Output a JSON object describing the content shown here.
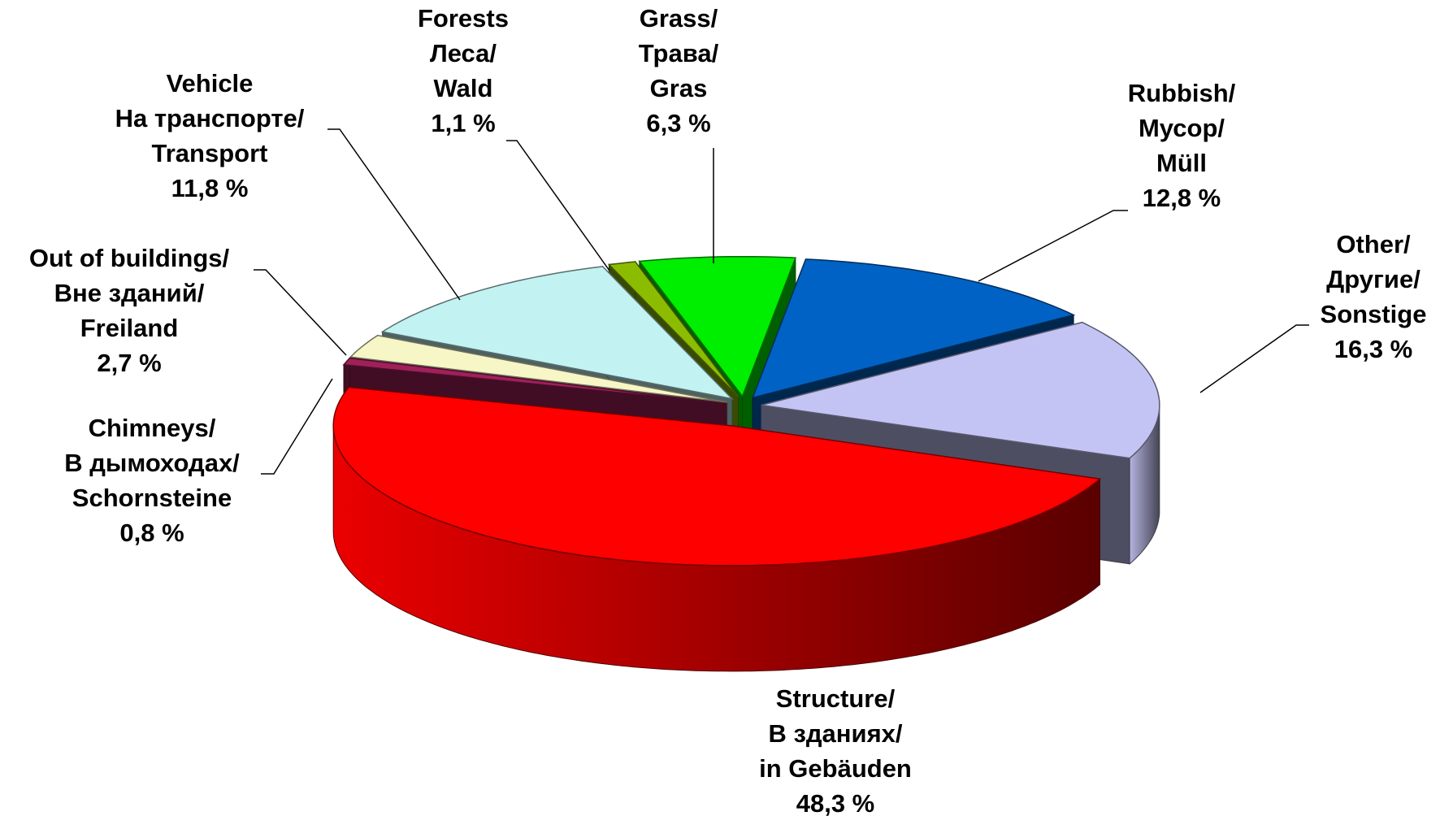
{
  "chart_data": {
    "type": "pie3d",
    "categories": [
      [
        "Grass/",
        "Трава/",
        "Gras"
      ],
      [
        "Rubbish/",
        "Мусор/",
        "Müll"
      ],
      [
        "Other/",
        "Другие/",
        "Sonstige"
      ],
      [
        "Structure/",
        "В зданиях/",
        "in Gebäuden"
      ],
      [
        "Chimneys/",
        "В дымоходах/",
        "Schornsteine"
      ],
      [
        "Out of buildings/",
        "Вне зданий/",
        "Freiland"
      ],
      [
        "Vehicle",
        "На транспорте/",
        "Transport"
      ],
      [
        "Forests",
        "Леса/",
        "Wald"
      ]
    ],
    "values": [
      6.3,
      12.8,
      16.3,
      48.3,
      0.8,
      2.7,
      11.8,
      1.1
    ],
    "value_labels": [
      "6,3 %",
      "12,8 %",
      "16,3 %",
      "48,3 %",
      "0,8 %",
      "2,7 %",
      "11,8  %",
      "1,1 %"
    ],
    "colors": [
      "#00ee00",
      "#0062c4",
      "#c4c4f4",
      "#ff0000",
      "#a0205a",
      "#f6f6c6",
      "#c2f2f2",
      "#8cbc00"
    ]
  }
}
